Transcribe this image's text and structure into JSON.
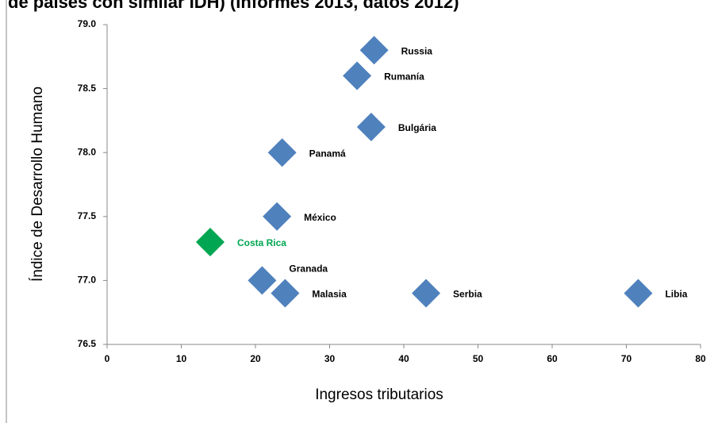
{
  "chart_data": {
    "type": "scatter",
    "title": "de países con similar IDH) (Informes 2013, datos 2012)",
    "x_label": "Ingresos tributarios",
    "y_label": "Índice de Desarrollo Humano",
    "points": [
      {
        "label": "Russia",
        "x": 36.0,
        "y": 78.8,
        "color": "#4f81bd"
      },
      {
        "label": "Rumanía",
        "x": 33.7,
        "y": 78.6,
        "color": "#4f81bd"
      },
      {
        "label": "Bulgária",
        "x": 35.6,
        "y": 78.2,
        "color": "#4f81bd"
      },
      {
        "label": "Panamá",
        "x": 23.6,
        "y": 78.0,
        "color": "#4f81bd"
      },
      {
        "label": "México",
        "x": 22.9,
        "y": 77.5,
        "color": "#4f81bd"
      },
      {
        "label": "Costa Rica",
        "x": 13.9,
        "y": 77.3,
        "color": "#00a651"
      },
      {
        "label": "Granada",
        "x": 20.9,
        "y": 77.0,
        "color": "#4f81bd"
      },
      {
        "label": "Malasia",
        "x": 24.0,
        "y": 76.9,
        "color": "#4f81bd"
      },
      {
        "label": "Serbia",
        "x": 43.0,
        "y": 76.9,
        "color": "#4f81bd"
      },
      {
        "label": "Libia",
        "x": 71.6,
        "y": 76.9,
        "color": "#4f81bd"
      }
    ],
    "xlim": [
      0,
      80
    ],
    "xticks": [
      0,
      10,
      20,
      30,
      40,
      50,
      60,
      70,
      80
    ],
    "ylim": [
      76.5,
      79.0
    ],
    "yticks": [
      {
        "value": 76.5,
        "label": "76.5"
      },
      {
        "value": 77.0,
        "label": "77.0"
      },
      {
        "value": 77.5,
        "label": "77.5"
      },
      {
        "value": 78.0,
        "label": "78.0"
      },
      {
        "value": 78.5,
        "label": "78.5"
      },
      {
        "value": 79.0,
        "label": "79.0"
      }
    ]
  }
}
